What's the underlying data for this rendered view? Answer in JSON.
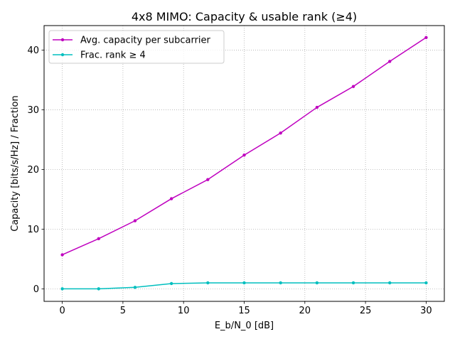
{
  "chart_data": {
    "type": "line",
    "title": "4x8 MIMO: Capacity & usable rank (≥4)",
    "xlabel": "E_b/N_0 [dB]",
    "ylabel": "Capacity [bits/s/Hz] / Fraction",
    "xlim": [
      -1.5,
      31.5
    ],
    "ylim": [
      -2.1,
      44.1
    ],
    "x": [
      0,
      3,
      6,
      9,
      12,
      15,
      18,
      21,
      24,
      27,
      30
    ],
    "xticks": [
      0,
      5,
      10,
      15,
      20,
      25,
      30
    ],
    "yticks": [
      0,
      10,
      20,
      30,
      40
    ],
    "grid": true,
    "grid_style": "dotted",
    "legend_position": "upper left",
    "series": [
      {
        "name": "Avg. capacity per subcarrier",
        "color": "#bf00bf",
        "marker": "dot",
        "values": [
          5.7,
          8.4,
          11.4,
          15.1,
          18.3,
          22.4,
          26.1,
          30.4,
          33.9,
          38.1,
          42.1
        ]
      },
      {
        "name": "Frac. rank ≥ 4",
        "color": "#00bfbf",
        "marker": "dot",
        "values": [
          0.0,
          0.0,
          0.25,
          0.88,
          1.0,
          1.0,
          1.0,
          1.0,
          1.0,
          1.0,
          1.0
        ]
      }
    ]
  }
}
